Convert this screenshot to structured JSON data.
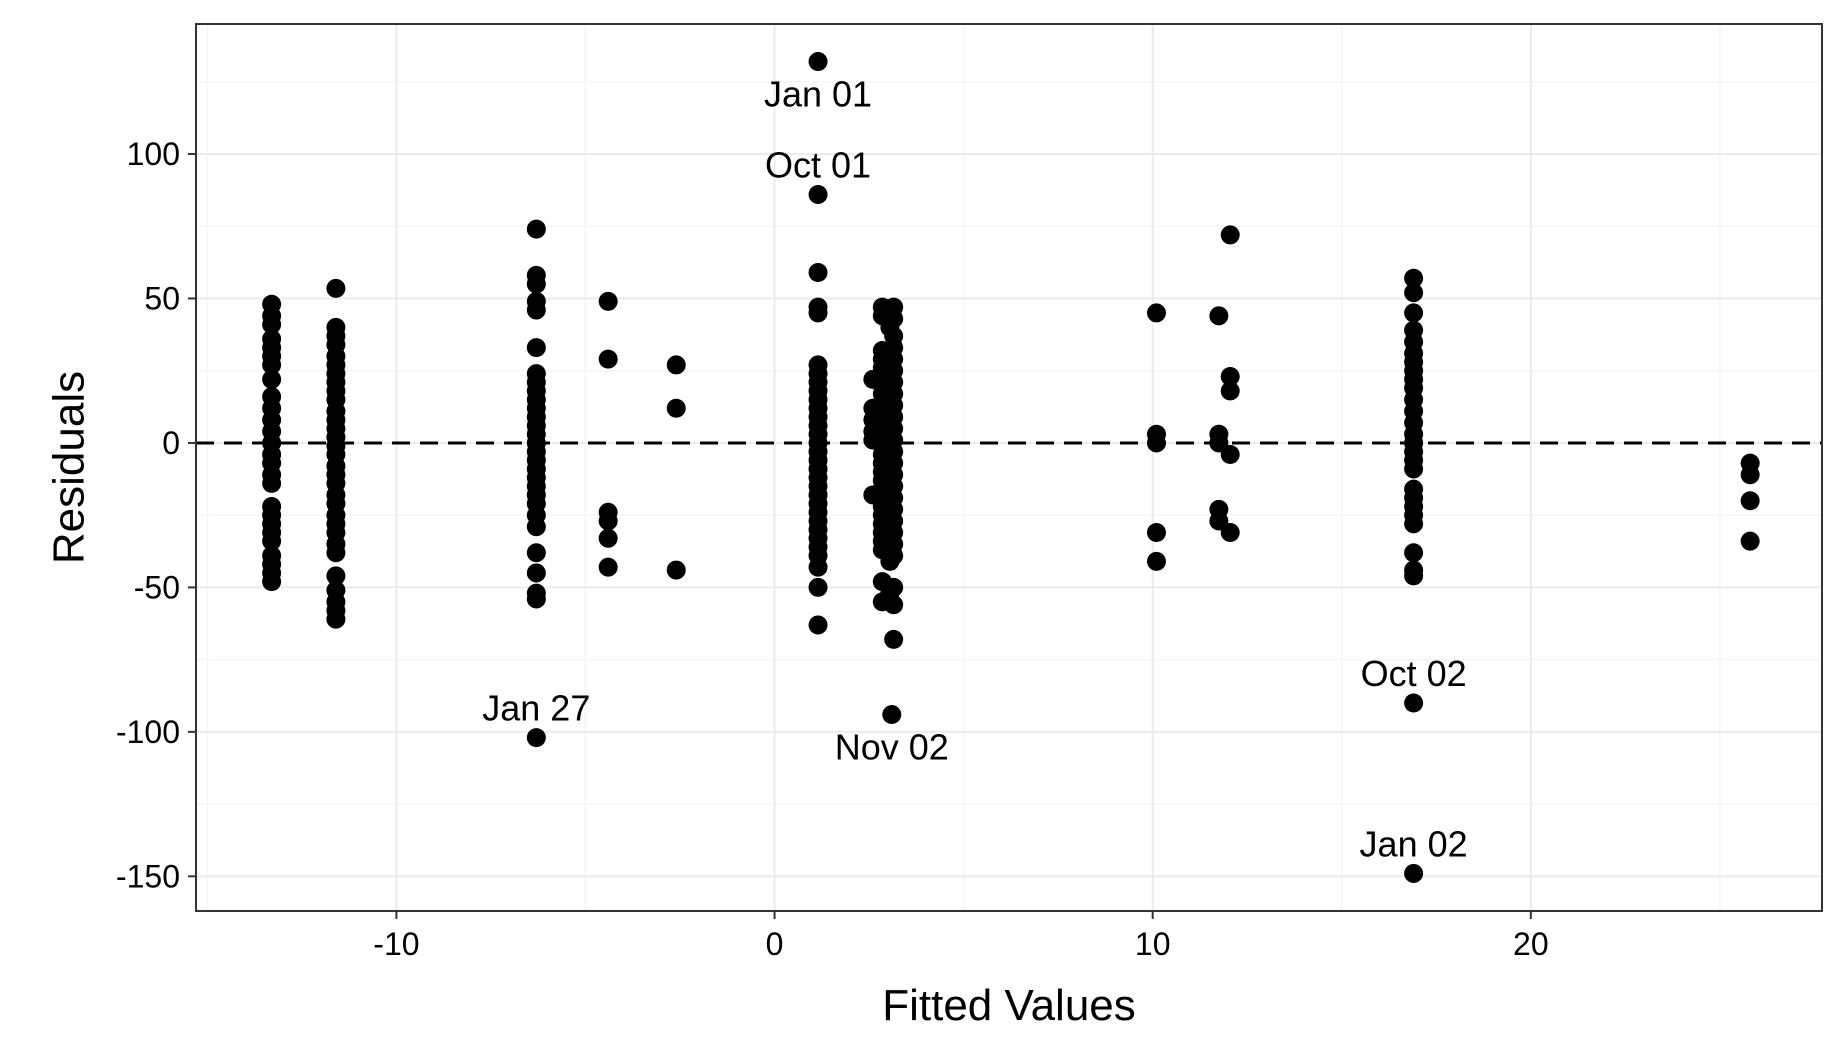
{
  "chart_data": {
    "type": "scatter",
    "xlabel": "Fitted Values",
    "ylabel": "Residuals",
    "xlim": [
      -15.3,
      27.7
    ],
    "ylim": [
      -162,
      145
    ],
    "x_ticks": [
      -10,
      0,
      10,
      20
    ],
    "x_tick_labels": [
      "-10",
      "0",
      "10",
      "20"
    ],
    "y_ticks": [
      -150,
      -100,
      -50,
      0,
      50,
      100
    ],
    "y_tick_labels": [
      "-150",
      "-100",
      "-50",
      "0",
      "50",
      "100"
    ],
    "grid": true,
    "reference_line": {
      "y": 0,
      "style": "dashed"
    },
    "columns": [
      {
        "x": -13.3,
        "y": [
          48,
          44,
          41,
          36,
          33,
          30,
          27,
          22,
          16,
          12,
          8,
          4,
          0,
          -4,
          -7,
          -11,
          -14,
          -22,
          -25,
          -28,
          -31,
          -34,
          -39,
          -42,
          -45,
          -48
        ]
      },
      {
        "x": -11.6,
        "y": [
          53.5,
          40,
          37,
          34,
          30,
          27,
          24,
          21,
          18,
          15,
          11,
          8,
          5,
          2,
          -1,
          -4,
          -8,
          -11,
          -14,
          -18,
          -21,
          -25,
          -28,
          -31,
          -35,
          -38,
          -46,
          -51,
          -55,
          -58,
          -61
        ]
      },
      {
        "x": -6.3,
        "y": [
          74,
          58,
          55,
          49,
          46,
          33,
          24,
          21,
          18,
          15,
          12,
          9,
          6,
          3,
          0,
          -3,
          -6,
          -9,
          -12,
          -15,
          -18,
          -21,
          -25,
          -29,
          -38,
          -45,
          -52,
          -54
        ]
      },
      {
        "x": -4.4,
        "y": [
          49,
          29,
          -24,
          -27,
          -33,
          -43
        ]
      },
      {
        "x": -2.6,
        "y": [
          27,
          12,
          -44
        ]
      },
      {
        "x": 1.15,
        "y": [
          59,
          47,
          45,
          27,
          24,
          21,
          18,
          15,
          12,
          9,
          6,
          3,
          0,
          -3,
          -6,
          -9,
          -12,
          -15,
          -18,
          -21,
          -24,
          -27,
          -30,
          -33,
          -36,
          -39,
          -43,
          -50,
          -63
        ]
      },
      {
        "x": 2.6,
        "y": [
          22,
          12,
          8,
          4,
          1,
          -18
        ]
      },
      {
        "x": 2.85,
        "y": [
          47,
          44,
          32,
          29,
          26,
          23,
          20,
          17,
          14,
          11,
          8,
          5,
          2,
          -1,
          -4,
          -7,
          -10,
          -13,
          -16,
          -19,
          -22,
          -25,
          -28,
          -31,
          -34,
          -37,
          -48,
          -55
        ]
      },
      {
        "x": 3.05,
        "y": [
          46,
          43,
          40,
          31,
          28,
          25,
          22,
          19,
          16,
          13,
          10,
          7,
          4,
          1,
          -2,
          -5,
          -8,
          -11,
          -14,
          -17,
          -20,
          -23,
          -26,
          -29,
          -32,
          -35,
          -38,
          -41,
          -52
        ]
      },
      {
        "x": 3.15,
        "y": [
          47,
          43,
          37,
          33,
          29,
          25,
          21,
          17,
          13,
          9,
          5,
          1,
          -3,
          -7,
          -11,
          -15,
          -19,
          -23,
          -27,
          -31,
          -35,
          -39,
          -50,
          -56,
          -68
        ]
      },
      {
        "x": 10.1,
        "y": [
          45,
          3,
          0,
          -31,
          -41
        ]
      },
      {
        "x": 11.75,
        "y": [
          44,
          3,
          0,
          -23,
          -27
        ]
      },
      {
        "x": 12.05,
        "y": [
          72,
          23,
          18,
          -4,
          -31
        ]
      },
      {
        "x": 16.9,
        "y": [
          57,
          52,
          45,
          39,
          35,
          31,
          28,
          25,
          22,
          19,
          15,
          11,
          7,
          3,
          0,
          -3,
          -6,
          -9,
          -16,
          -19,
          -22,
          -25,
          -28,
          -38,
          -44,
          -46
        ]
      },
      {
        "x": 25.8,
        "y": [
          -7,
          -11,
          -20,
          -34
        ]
      }
    ],
    "labeled_points": [
      {
        "label": "Jan 01",
        "x": 1.15,
        "y": 132,
        "label_pos": "below"
      },
      {
        "label": "Oct 01",
        "x": 1.15,
        "y": 86,
        "label_pos": "above"
      },
      {
        "label": "Jan 27",
        "x": -6.3,
        "y": -102,
        "label_pos": "above"
      },
      {
        "label": "Nov 02",
        "x": 3.1,
        "y": -94,
        "label_pos": "below"
      },
      {
        "label": "Oct 02",
        "x": 16.9,
        "y": -90,
        "label_pos": "above"
      },
      {
        "label": "Jan 02",
        "x": 16.9,
        "y": -149,
        "label_pos": "above"
      }
    ],
    "colors": {
      "point": "#000000",
      "grid_major": "#ebebeb",
      "grid_minor": "#f5f5f5",
      "panel_border": "#333333",
      "axis_text": "#000000"
    }
  }
}
